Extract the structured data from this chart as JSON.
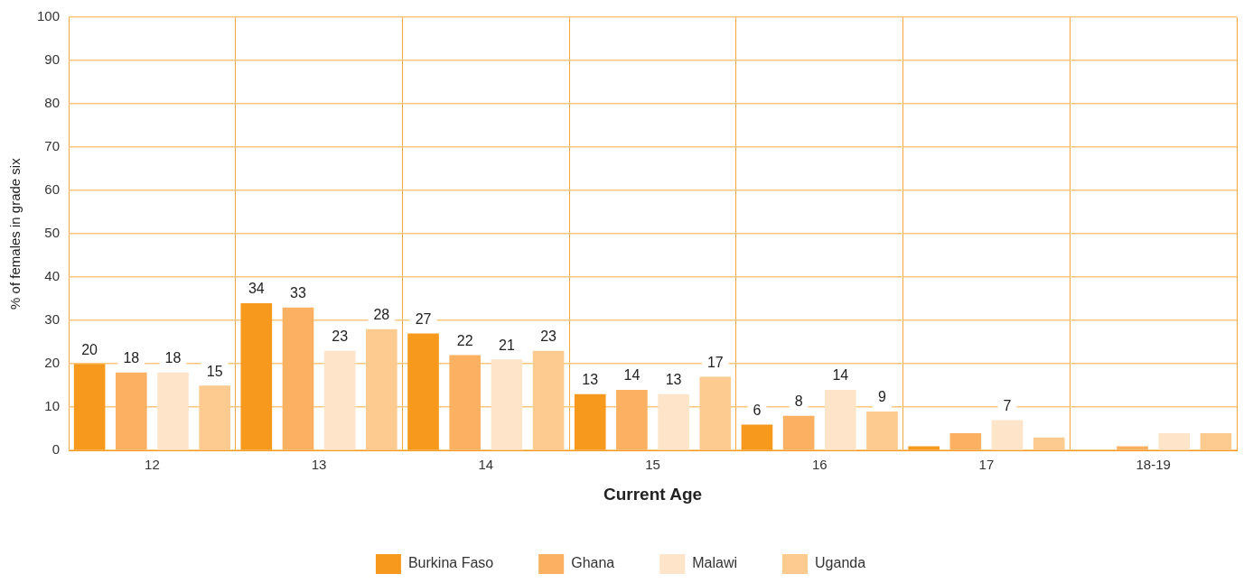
{
  "chart_data": {
    "type": "bar",
    "xlabel": "Current Age",
    "ylabel": "% of females in grade six",
    "categories": [
      "12",
      "13",
      "14",
      "15",
      "16",
      "17",
      "18-19"
    ],
    "series": [
      {
        "name": "Burkina Faso",
        "color": "#f7991c",
        "values": [
          20,
          34,
          27,
          13,
          6,
          1,
          0
        ],
        "value_labels": [
          "20",
          "34",
          "27",
          "13",
          "6",
          null,
          null
        ]
      },
      {
        "name": "Ghana",
        "color": "#fbb161",
        "values": [
          18,
          33,
          22,
          14,
          8,
          4,
          1
        ],
        "value_labels": [
          "18",
          "33",
          "22",
          "14",
          "8",
          null,
          null
        ]
      },
      {
        "name": "Malawi",
        "color": "#fee5c9",
        "values": [
          18,
          23,
          21,
          13,
          14,
          7,
          4
        ],
        "value_labels": [
          "18",
          "23",
          "21",
          "13",
          "14",
          "7",
          null
        ]
      },
      {
        "name": "Uganda",
        "color": "#fdca8f",
        "values": [
          15,
          28,
          23,
          17,
          9,
          3,
          4
        ],
        "value_labels": [
          "15",
          "28",
          "23",
          "17",
          "9",
          null,
          null
        ]
      }
    ],
    "ylim": [
      0,
      100
    ],
    "yticks": [
      0,
      10,
      20,
      30,
      40,
      50,
      60,
      70,
      80,
      90,
      100
    ],
    "grid": true,
    "legend": "bottom"
  }
}
